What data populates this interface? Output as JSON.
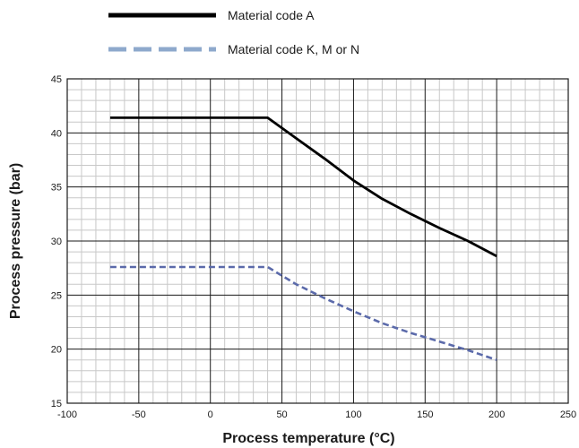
{
  "chart_data": {
    "type": "line",
    "title": "",
    "xlabel": "Process temperature (°C)",
    "ylabel": "Process pressure (bar)",
    "xlim": [
      -100,
      250
    ],
    "ylim": [
      15,
      45
    ],
    "xticks": [
      -100,
      -50,
      0,
      50,
      100,
      150,
      200,
      250
    ],
    "yticks": [
      15,
      20,
      25,
      30,
      35,
      40,
      45
    ],
    "x_minor_step": 10,
    "y_minor_step": 1,
    "grid": true,
    "legend_position": "top",
    "series": [
      {
        "name": "Material code A",
        "color": "#000000",
        "style": "solid",
        "points": [
          [
            -70,
            41.4
          ],
          [
            40,
            41.4
          ],
          [
            60,
            39.5
          ],
          [
            80,
            37.6
          ],
          [
            100,
            35.6
          ],
          [
            120,
            33.9
          ],
          [
            140,
            32.5
          ],
          [
            160,
            31.2
          ],
          [
            180,
            30.0
          ],
          [
            200,
            28.6
          ]
        ]
      },
      {
        "name": "Material code K, M or N",
        "color": "#5b6aaa",
        "legend_color": "#8ea9cc",
        "style": "dashed",
        "points": [
          [
            -70,
            27.6
          ],
          [
            40,
            27.6
          ],
          [
            60,
            26.0
          ],
          [
            80,
            24.7
          ],
          [
            100,
            23.5
          ],
          [
            120,
            22.4
          ],
          [
            140,
            21.5
          ],
          [
            160,
            20.7
          ],
          [
            180,
            19.9
          ],
          [
            200,
            19.0
          ]
        ]
      }
    ]
  }
}
